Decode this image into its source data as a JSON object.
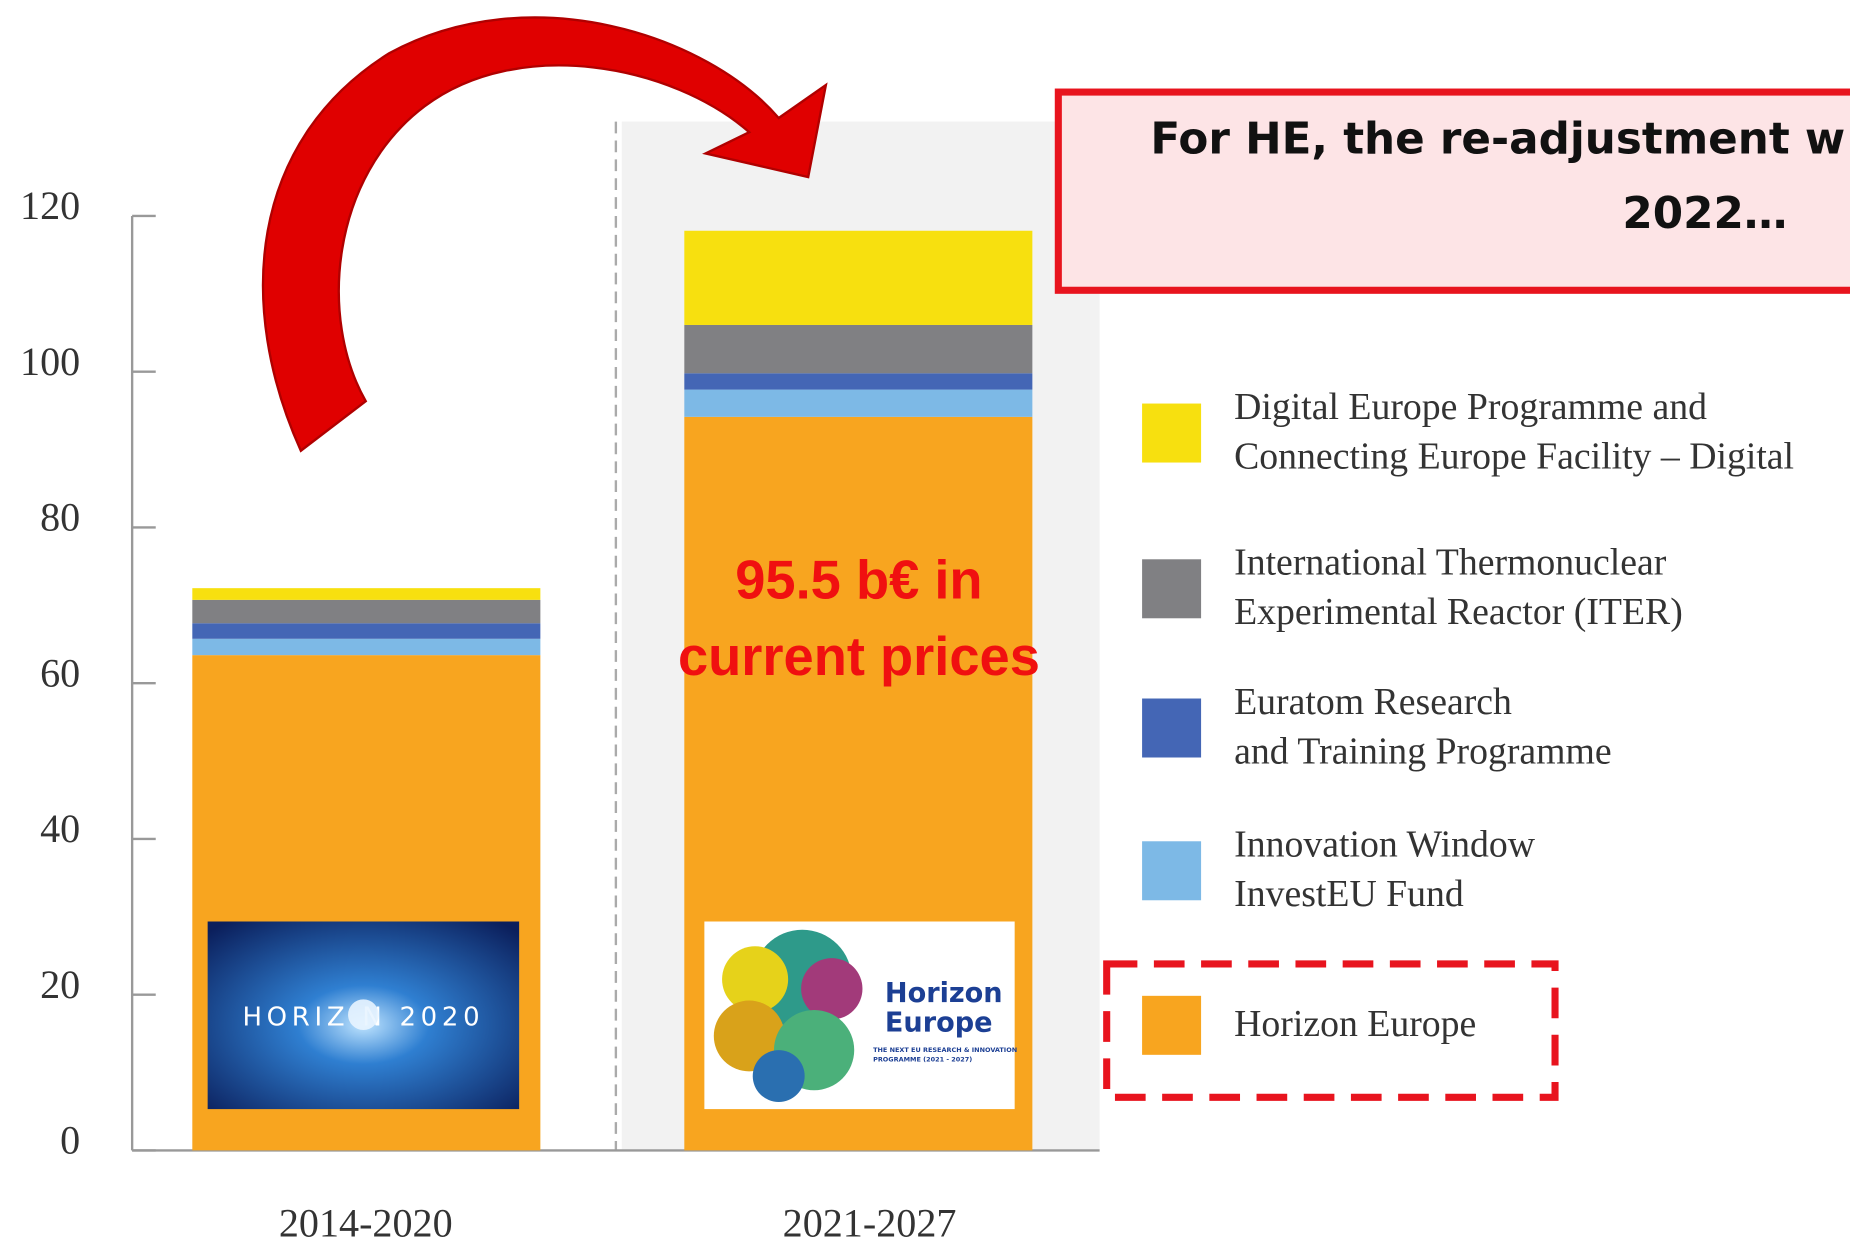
{
  "chart_data": {
    "type": "stacked_bar",
    "categories": [
      "2014-2020",
      "2021-2027"
    ],
    "series": [
      {
        "name": "Horizon Europe",
        "color": "#F8A51F",
        "values": [
          63.6,
          94.2
        ]
      },
      {
        "name": "Innovation Window\nInvestEU Fund",
        "color": "#7DB9E6",
        "values": [
          2.1,
          3.5
        ]
      },
      {
        "name": "Euratom Research\nand Training Programme",
        "color": "#4466B5",
        "values": [
          2.0,
          2.1
        ]
      },
      {
        "name": "International Thermonuclear\nExperimental Reactor (ITER)",
        "color": "#808083",
        "values": [
          3.0,
          6.2
        ]
      },
      {
        "name": "Digital Europe Programme and\nConnecting Europe Facility – Digital",
        "color": "#F7E00F",
        "values": [
          1.5,
          12.1
        ]
      }
    ],
    "ylim": [
      0,
      120
    ],
    "yticks": [
      0,
      20,
      40,
      60,
      80,
      100,
      120
    ],
    "annotation": [
      "95.5 b€ in",
      "current prices"
    ],
    "callout": [
      "For HE, the re-adjustment w",
      "2022…"
    ],
    "logos": {
      "h2020": "HORIZ   N 2020",
      "he_title": [
        "Horizon",
        "Europe"
      ],
      "he_sub": [
        "THE NEXT EU RESEARCH & INNOVATION",
        "PROGRAMME (2021 - 2027)"
      ]
    }
  }
}
